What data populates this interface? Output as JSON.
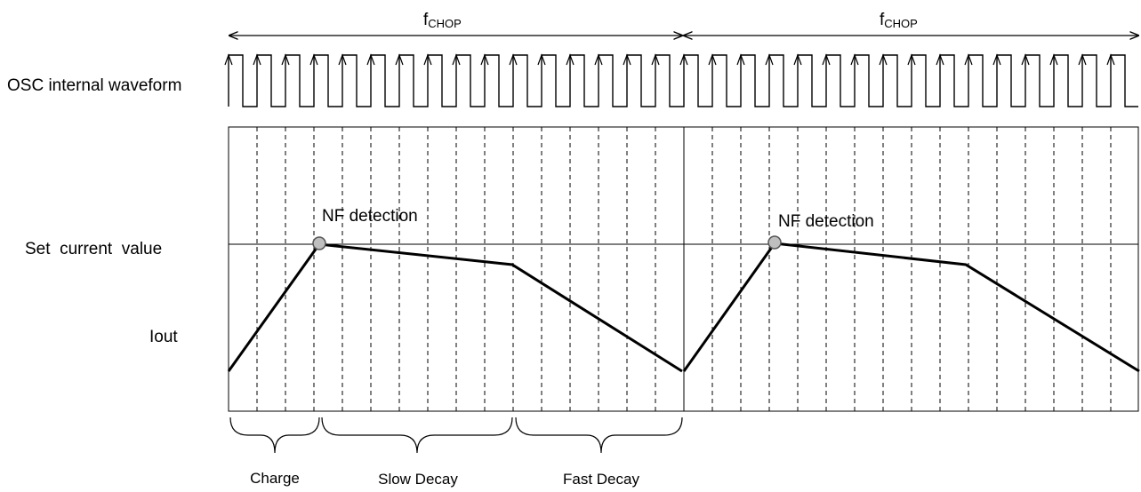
{
  "labels": {
    "fchop_main": "f",
    "fchop_sub": "CHOP",
    "osc": "OSC internal waveform",
    "set_current": "Set  current  value",
    "iout": "Iout",
    "nf_detection": "NF detection"
  },
  "phases": {
    "charge": "Charge",
    "slow_decay": "Slow Decay",
    "fast_decay": "Fast Decay"
  },
  "colors": {
    "line": "#000000",
    "marker_fill": "#bfbfbf",
    "marker_stroke": "#555555"
  }
}
